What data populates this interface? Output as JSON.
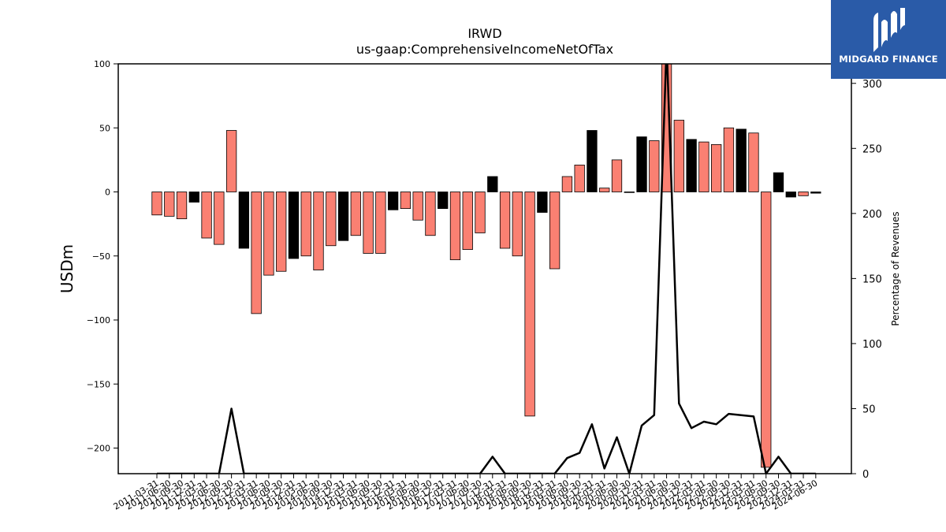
{
  "chart_data": {
    "type": "bar",
    "title": "IRWD",
    "subtitle": "us-gaap:ComprehensiveIncomeNetOfTax",
    "ylabel": "USDm",
    "y2label": "Percentage of Revenues",
    "ylim": [
      -220,
      100
    ],
    "y2lim": [
      0,
      315
    ],
    "yticks": [
      100,
      50,
      0,
      -50,
      -100,
      -150,
      -200
    ],
    "y2ticks": [
      0,
      50,
      100,
      150,
      200,
      250,
      300
    ],
    "grid": false,
    "categories": [
      "2011-03-31",
      "2011-06-30",
      "2011-09-30",
      "2011-12-31",
      "2012-03-31",
      "2012-06-30",
      "2012-09-30",
      "2012-12-31",
      "2013-03-31",
      "2013-06-30",
      "2013-09-30",
      "2013-12-31",
      "2014-03-31",
      "2014-06-30",
      "2014-09-30",
      "2014-12-31",
      "2015-03-31",
      "2015-06-30",
      "2015-09-30",
      "2015-12-31",
      "2016-03-31",
      "2016-06-30",
      "2016-09-30",
      "2016-12-31",
      "2017-03-31",
      "2017-06-30",
      "2017-09-30",
      "2017-12-31",
      "2018-03-31",
      "2018-06-30",
      "2018-09-30",
      "2018-12-31",
      "2019-03-31",
      "2019-06-30",
      "2019-09-30",
      "2019-12-31",
      "2020-03-31",
      "2020-06-30",
      "2020-09-30",
      "2020-12-31",
      "2021-03-31",
      "2021-06-30",
      "2021-09-30",
      "2021-12-31",
      "2022-03-31",
      "2022-06-30",
      "2022-09-30",
      "2022-12-31",
      "2023-03-31",
      "2023-06-30",
      "2023-09-30",
      "2023-12-31",
      "2024-03-31",
      "2024-06-30"
    ],
    "series": [
      {
        "type": "bar",
        "values": [
          -18,
          -19,
          -21,
          -8,
          -36,
          -41,
          48,
          -44,
          -95,
          -65,
          -62,
          -52,
          -50,
          -61,
          -42,
          -38,
          -34,
          -48,
          -48,
          -14,
          -13,
          -22,
          -34,
          -13,
          -53,
          -45,
          -32,
          12,
          -44,
          -50,
          -175,
          -16,
          -60,
          12,
          21,
          48,
          3,
          25,
          0,
          43,
          40,
          104,
          56,
          41,
          39,
          37,
          50,
          49,
          46,
          -215,
          15,
          -4,
          -3,
          -1
        ],
        "colors": [
          "#fa8072",
          "#fa8072",
          "#fa8072",
          "#000000",
          "#fa8072",
          "#fa8072",
          "#fa8072",
          "#000000",
          "#fa8072",
          "#fa8072",
          "#fa8072",
          "#000000",
          "#fa8072",
          "#fa8072",
          "#fa8072",
          "#000000",
          "#fa8072",
          "#fa8072",
          "#fa8072",
          "#000000",
          "#fa8072",
          "#fa8072",
          "#fa8072",
          "#000000",
          "#fa8072",
          "#fa8072",
          "#fa8072",
          "#000000",
          "#fa8072",
          "#fa8072",
          "#fa8072",
          "#000000",
          "#fa8072",
          "#fa8072",
          "#fa8072",
          "#000000",
          "#fa8072",
          "#fa8072",
          "#fa8072",
          "#000000",
          "#fa8072",
          "#fa8072",
          "#fa8072",
          "#000000",
          "#fa8072",
          "#fa8072",
          "#fa8072",
          "#000000",
          "#fa8072",
          "#fa8072",
          "#000000",
          "#000000",
          "#fa8072",
          "#000000"
        ]
      },
      {
        "type": "line",
        "axis": "right",
        "color": "#000000",
        "values": [
          0,
          0,
          0,
          0,
          0,
          0,
          50,
          0,
          0,
          0,
          0,
          0,
          0,
          0,
          0,
          0,
          0,
          0,
          0,
          0,
          0,
          0,
          0,
          0,
          0,
          0,
          0,
          13,
          0,
          0,
          0,
          0,
          0,
          12,
          16,
          38,
          4,
          28,
          0,
          37,
          45,
          330,
          54,
          35,
          40,
          38,
          46,
          45,
          44,
          0,
          13,
          0,
          0,
          0
        ]
      }
    ]
  },
  "logo": {
    "text": "MIDGARD FINANCE",
    "color": "#2a5ba8"
  }
}
